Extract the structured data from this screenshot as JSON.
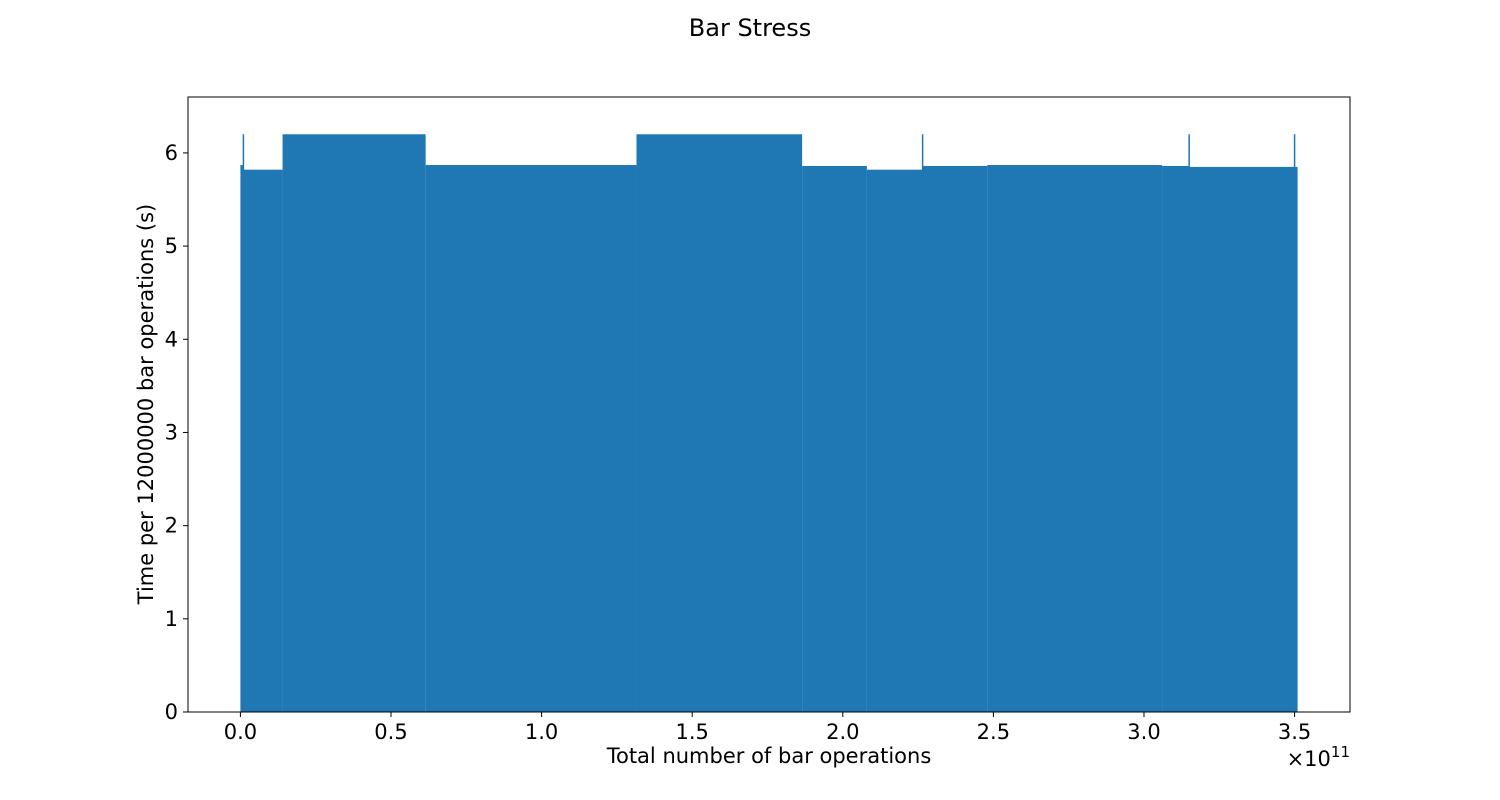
{
  "chart_data": {
    "type": "area",
    "title": "Bar Stress",
    "xlabel": "Total number of bar operations",
    "ylabel": "Time per 12000000 bar operations (s)",
    "x_offset_text": "×10",
    "x_offset_exponent": "11",
    "xlim": [
      -0.174,
      3.684
    ],
    "ylim": [
      0,
      6.6
    ],
    "xticks": [
      {
        "value": 0.0,
        "label": "0.0"
      },
      {
        "value": 0.5,
        "label": "0.5"
      },
      {
        "value": 1.0,
        "label": "1.0"
      },
      {
        "value": 1.5,
        "label": "1.5"
      },
      {
        "value": 2.0,
        "label": "2.0"
      },
      {
        "value": 2.5,
        "label": "2.5"
      },
      {
        "value": 3.0,
        "label": "3.0"
      },
      {
        "value": 3.5,
        "label": "3.5"
      }
    ],
    "yticks": [
      {
        "value": 0,
        "label": "0"
      },
      {
        "value": 1,
        "label": "1"
      },
      {
        "value": 2,
        "label": "2"
      },
      {
        "value": 3,
        "label": "3"
      },
      {
        "value": 4,
        "label": "4"
      },
      {
        "value": 5,
        "label": "5"
      },
      {
        "value": 6,
        "label": "6"
      }
    ],
    "grid": false,
    "colors": {
      "fill": "#1f77b4"
    },
    "series": [
      {
        "segments": [
          {
            "x_start": 0.0,
            "x_end": 0.01,
            "y": 5.87
          },
          {
            "x_start": 0.01,
            "x_end": 0.14,
            "y": 5.82
          },
          {
            "x_start": 0.14,
            "x_end": 0.615,
            "y": 6.2
          },
          {
            "x_start": 0.615,
            "x_end": 1.315,
            "y": 5.87
          },
          {
            "x_start": 1.315,
            "x_end": 1.865,
            "y": 6.2
          },
          {
            "x_start": 1.865,
            "x_end": 2.08,
            "y": 5.86
          },
          {
            "x_start": 2.08,
            "x_end": 2.265,
            "y": 5.82
          },
          {
            "x_start": 2.265,
            "x_end": 2.48,
            "y": 5.86
          },
          {
            "x_start": 2.48,
            "x_end": 3.06,
            "y": 5.87
          },
          {
            "x_start": 3.06,
            "x_end": 3.15,
            "y": 5.86
          },
          {
            "x_start": 3.15,
            "x_end": 3.51,
            "y": 5.85
          }
        ],
        "spikes": [
          {
            "x": 0.01,
            "y": 6.2
          },
          {
            "x": 2.265,
            "y": 6.2
          },
          {
            "x": 3.15,
            "y": 6.2
          },
          {
            "x": 3.5,
            "y": 6.2
          }
        ]
      }
    ]
  }
}
